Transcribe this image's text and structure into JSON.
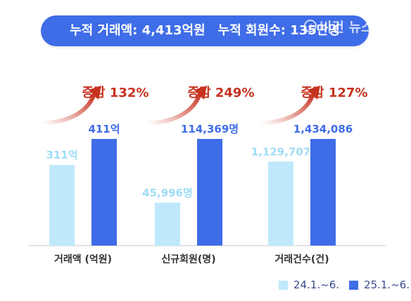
{
  "banner": {
    "left_text": "누적 거래액: 4,413억원",
    "right_text": "누적 회원수: 135만명"
  },
  "watermark": {
    "text": "비건 뉴스",
    "mark": "✓"
  },
  "chart_data": {
    "type": "bar",
    "independent_scale_per_group": true,
    "categories": [
      "거래액 (억원)",
      "신규회원(명)",
      "거래건수(건)"
    ],
    "series": [
      {
        "name": "24.1.~6.",
        "color": "#bfe9fb",
        "values": [
          311,
          45996,
          1129707
        ],
        "labels": [
          "311억",
          "45,996명",
          "1,129,707"
        ]
      },
      {
        "name": "25.1.~6.",
        "color": "#3f6de8",
        "values": [
          411,
          114369,
          1434086
        ],
        "labels": [
          "411억",
          "114,369명",
          "1,434,086"
        ]
      }
    ],
    "annotations": [
      "증감 132%",
      "증감 249%",
      "증감 127%"
    ],
    "colors": {
      "arrow": "#c6321f",
      "light_label": "#9fdcf6",
      "dark_label": "#3f6de8",
      "axis": "#c8c8c8",
      "category_text": "#333333"
    },
    "grid": false,
    "legend_position": "bottom-right"
  }
}
